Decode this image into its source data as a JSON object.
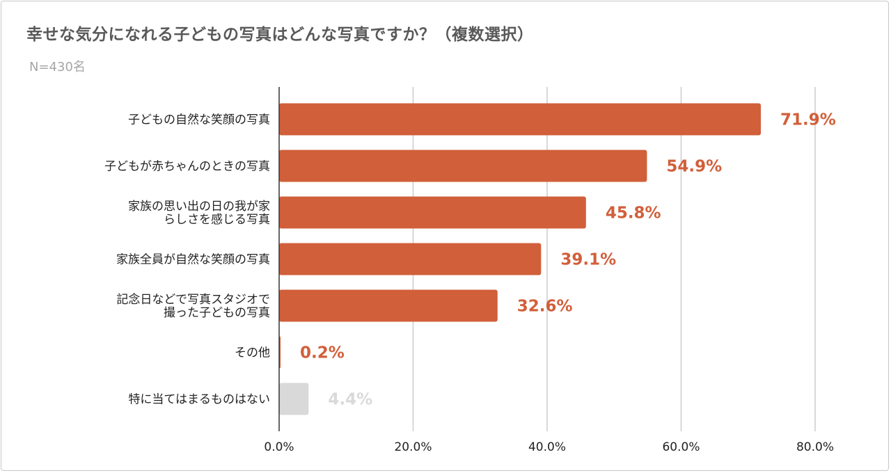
{
  "chart_data": {
    "type": "bar",
    "orientation": "horizontal",
    "title": "幸せな気分になれる子どもの写真はどんな写真ですか？（複数選択）",
    "subtitle": "N=430名",
    "categories": [
      [
        "子どもの自然な笑顔の写真"
      ],
      [
        "子どもが赤ちゃんのときの写真"
      ],
      [
        "家族の思い出の日の我が家",
        "らしさを感じる写真"
      ],
      [
        "家族全員が自然な笑顔の写真"
      ],
      [
        "記念日などで写真スタジオで",
        "撮った子どもの写真"
      ],
      [
        "その他"
      ],
      [
        "特に当てはまるものはない"
      ]
    ],
    "values": [
      71.9,
      54.9,
      45.8,
      39.1,
      32.6,
      0.2,
      4.4
    ],
    "value_labels": [
      "71.9%",
      "54.9%",
      "45.8%",
      "39.1%",
      "32.6%",
      "0.2%",
      "4.4%"
    ],
    "bar_colors": [
      "#d15f3a",
      "#d15f3a",
      "#d15f3a",
      "#d15f3a",
      "#d15f3a",
      "#d15f3a",
      "#d9d9d9"
    ],
    "xlim": [
      0,
      80
    ],
    "xticks": [
      0,
      20,
      40,
      60,
      80
    ],
    "xtick_labels": [
      "0.0%",
      "20.0%",
      "40.0%",
      "60.0%",
      "80.0%"
    ],
    "xlabel": "",
    "ylabel": "",
    "grid": true
  }
}
